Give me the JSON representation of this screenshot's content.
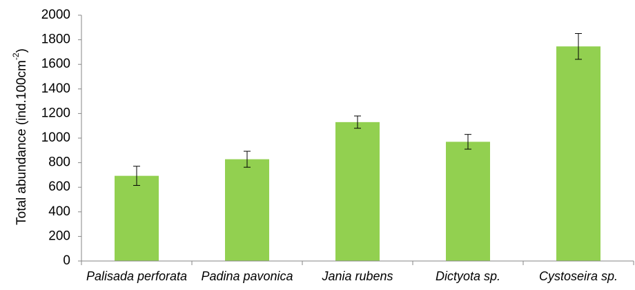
{
  "chart_data": {
    "type": "bar",
    "categories": [
      "Palisada perforata",
      "Padina pavonica",
      "Jania rubens",
      "Dictyota sp.",
      "Cystoseira sp."
    ],
    "values": [
      693,
      828,
      1130,
      970,
      1746
    ],
    "error_plus": [
      78,
      65,
      50,
      60,
      105
    ],
    "error_minus": [
      78,
      65,
      50,
      60,
      105
    ],
    "title": "",
    "xlabel": "",
    "ylabel_main": "Total abundance (ind.100cm",
    "ylabel_sup": "-2",
    "ylabel_end": ")",
    "ylim": [
      0,
      2000
    ],
    "yticks": [
      "0",
      "200",
      "400",
      "600",
      "800",
      "1000",
      "1200",
      "1400",
      "1600",
      "1800",
      "2000"
    ],
    "grid": false,
    "legend": "none",
    "bar_color": "#92d050"
  }
}
